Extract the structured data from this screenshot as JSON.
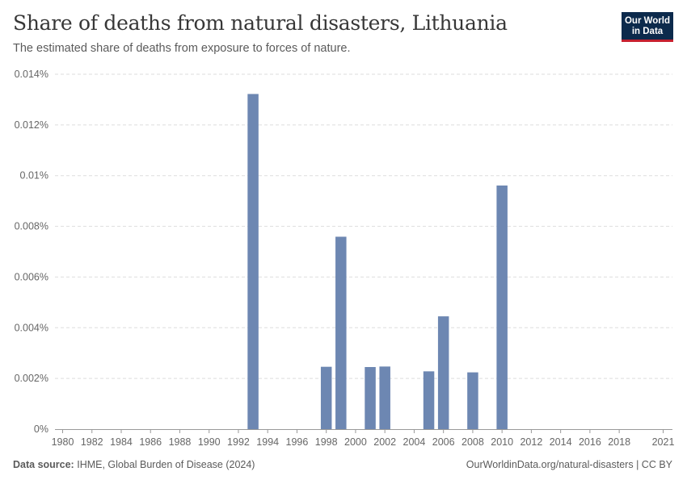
{
  "header": {
    "title": "Share of deaths from natural disasters, Lithuania",
    "subtitle": "The estimated share of deaths from exposure to forces of nature."
  },
  "logo": {
    "line1": "Our World",
    "line2": "in Data",
    "bg_color": "#0c2a4c",
    "accent_color": "#c6202f"
  },
  "footer": {
    "source_label": "Data source:",
    "source_text": "IHME, Global Burden of Disease (2024)",
    "url_text": "OurWorldinData.org/natural-disasters | CC BY"
  },
  "chart_data": {
    "type": "bar",
    "title": "Share of deaths from natural disasters, Lithuania",
    "subtitle": "The estimated share of deaths from exposure to forces of nature.",
    "bar_color": "#6d87b2",
    "x_range": [
      1980,
      2021
    ],
    "y_range": [
      0,
      0.014
    ],
    "y_unit": "%",
    "grid": "horizontal-dashed",
    "y_ticks": [
      {
        "value": 0,
        "label": "0%"
      },
      {
        "value": 0.002,
        "label": "0.002%"
      },
      {
        "value": 0.004,
        "label": "0.004%"
      },
      {
        "value": 0.006,
        "label": "0.006%"
      },
      {
        "value": 0.008,
        "label": "0.008%"
      },
      {
        "value": 0.01,
        "label": "0.01%"
      },
      {
        "value": 0.012,
        "label": "0.012%"
      },
      {
        "value": 0.014,
        "label": "0.014%"
      }
    ],
    "x_ticks": [
      "1980",
      "1982",
      "1984",
      "1986",
      "1988",
      "1990",
      "1992",
      "1994",
      "1996",
      "1998",
      "2000",
      "2002",
      "2004",
      "2006",
      "2008",
      "2010",
      "2012",
      "2014",
      "2016",
      "2018",
      "2021"
    ],
    "x": [
      1993,
      1998,
      1999,
      2001,
      2002,
      2005,
      2006,
      2008,
      2010
    ],
    "values": [
      0.01322,
      0.00246,
      0.00759,
      0.00245,
      0.00247,
      0.00228,
      0.00445,
      0.00224,
      0.00961
    ]
  }
}
